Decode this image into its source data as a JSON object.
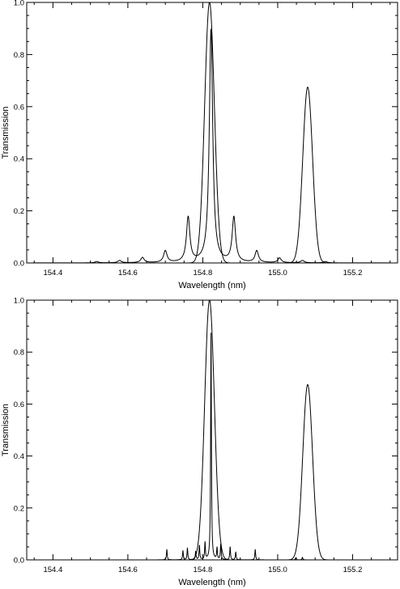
{
  "chart_data": [
    {
      "type": "line",
      "xlabel": "Wavelength (nm)",
      "ylabel": "Transmission",
      "xlim": [
        154.33,
        155.32
      ],
      "ylim": [
        0.0,
        1.0
      ],
      "xticks": [
        154.4,
        154.6,
        154.8,
        155.0,
        155.2
      ],
      "xtick_labels": [
        "154.4",
        "154.6",
        "154.8",
        "155.0",
        "155.2"
      ],
      "yticks": [
        0.0,
        0.2,
        0.4,
        0.6,
        0.8,
        1.0
      ],
      "ytick_labels": [
        "0.0",
        "0.2",
        "0.4",
        "0.6",
        "0.8",
        "1.0"
      ],
      "grid": false,
      "series": [
        {
          "shape": "gaussian",
          "peaks": [
            {
              "center": 154.818,
              "height": 1.0,
              "width": 0.013
            },
            {
              "center": 155.08,
              "height": 0.675,
              "width": 0.013
            }
          ]
        },
        {
          "shape": "lorentzian",
          "peaks": [
            {
              "center": 154.822,
              "height": 0.895,
              "width": 0.0055
            },
            {
              "center": 154.761,
              "height": 0.172,
              "width": 0.0055
            },
            {
              "center": 154.883,
              "height": 0.172,
              "width": 0.0055
            },
            {
              "center": 154.7,
              "height": 0.045,
              "width": 0.0055
            },
            {
              "center": 154.944,
              "height": 0.045,
              "width": 0.0055
            },
            {
              "center": 154.639,
              "height": 0.02,
              "width": 0.0055
            },
            {
              "center": 155.005,
              "height": 0.018,
              "width": 0.0055
            },
            {
              "center": 154.578,
              "height": 0.009,
              "width": 0.0055
            },
            {
              "center": 155.066,
              "height": 0.009,
              "width": 0.0055
            },
            {
              "center": 154.517,
              "height": 0.005,
              "width": 0.0055
            },
            {
              "center": 155.127,
              "height": 0.005,
              "width": 0.0055
            }
          ]
        }
      ]
    },
    {
      "type": "line",
      "xlabel": "Wavelength (nm)",
      "ylabel": "Transmission",
      "xlim": [
        154.33,
        155.32
      ],
      "ylim": [
        0.0,
        1.0
      ],
      "xticks": [
        154.4,
        154.6,
        154.8,
        155.0,
        155.2
      ],
      "xtick_labels": [
        "154.4",
        "154.6",
        "154.8",
        "155.0",
        "155.2"
      ],
      "yticks": [
        0.0,
        0.2,
        0.4,
        0.6,
        0.8,
        1.0
      ],
      "ytick_labels": [
        "0.0",
        "0.2",
        "0.4",
        "0.6",
        "0.8",
        "1.0"
      ],
      "grid": false,
      "series": [
        {
          "shape": "gaussian",
          "peaks": [
            {
              "center": 154.818,
              "height": 1.0,
              "width": 0.013
            },
            {
              "center": 155.08,
              "height": 0.675,
              "width": 0.013
            }
          ]
        },
        {
          "shape": "lorentzian",
          "peaks": [
            {
              "center": 154.822,
              "height": 0.88,
              "width": 0.0012
            },
            {
              "center": 154.704,
              "height": 0.04,
              "width": 0.0012
            },
            {
              "center": 154.747,
              "height": 0.035,
              "width": 0.0012
            },
            {
              "center": 154.759,
              "height": 0.045,
              "width": 0.0012
            },
            {
              "center": 154.781,
              "height": 0.032,
              "width": 0.0012
            },
            {
              "center": 154.791,
              "height": 0.055,
              "width": 0.0012
            },
            {
              "center": 154.806,
              "height": 0.065,
              "width": 0.0012
            },
            {
              "center": 154.838,
              "height": 0.045,
              "width": 0.0012
            },
            {
              "center": 154.848,
              "height": 0.06,
              "width": 0.0012
            },
            {
              "center": 154.873,
              "height": 0.05,
              "width": 0.0012
            },
            {
              "center": 154.888,
              "height": 0.03,
              "width": 0.0012
            },
            {
              "center": 154.94,
              "height": 0.04,
              "width": 0.0012
            },
            {
              "center": 155.048,
              "height": 0.008,
              "width": 0.0012
            },
            {
              "center": 155.066,
              "height": 0.01,
              "width": 0.0012
            }
          ]
        }
      ]
    }
  ]
}
